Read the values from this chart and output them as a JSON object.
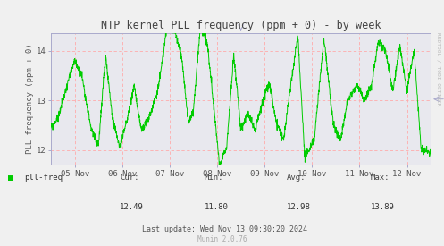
{
  "title": "NTP kernel PLL frequency (ppm + 0) - by week",
  "ylabel": "PLL frequency (ppm + 0)",
  "ylim": [
    11.7,
    14.35
  ],
  "yticks": [
    12,
    13,
    14
  ],
  "ytick_labels": [
    "12",
    "13",
    "14"
  ],
  "xlim": [
    0,
    8
  ],
  "xtick_labels": [
    "05 Nov",
    "06 Nov",
    "07 Nov",
    "08 Nov",
    "09 Nov",
    "10 Nov",
    "11 Nov",
    "12 Nov"
  ],
  "xtick_positions": [
    0.5,
    1.5,
    2.5,
    3.5,
    4.5,
    5.5,
    6.5,
    7.5
  ],
  "line_color": "#00cc00",
  "bg_color": "#f0f0f0",
  "plot_bg_color": "#e8e8ee",
  "grid_h_color": "#ffaaaa",
  "grid_v_color": "#ffaaaa",
  "spine_color": "#aaaacc",
  "title_color": "#444444",
  "tick_label_color": "#555555",
  "legend_label": "pll-freq",
  "legend_color": "#00cc00",
  "cur": "12.49",
  "min_val": "11.80",
  "avg": "12.98",
  "max_val": "13.89",
  "last_update": "Last update: Wed Nov 13 09:30:20 2024",
  "munin_version": "Munin 2.0.76",
  "watermark": "RRDTOOL / TOBI OETIKER"
}
